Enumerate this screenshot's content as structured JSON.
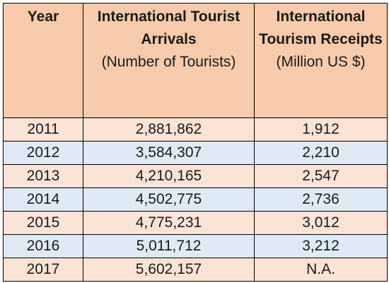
{
  "chart_data": {
    "type": "table",
    "columns": [
      {
        "title": "Year",
        "subtitle": ""
      },
      {
        "title": "International Tourist Arrivals",
        "subtitle": "(Number of Tourists)"
      },
      {
        "title": "International Tourism Receipts",
        "subtitle": "(Million US $)"
      }
    ],
    "rows": [
      [
        "2011",
        "2,881,862",
        "1,912"
      ],
      [
        "2012",
        "3,584,307",
        "2,210"
      ],
      [
        "2013",
        "4,210,165",
        "2,547"
      ],
      [
        "2014",
        "4,502,775",
        "2,736"
      ],
      [
        "2015",
        "4,775,231",
        "3,012"
      ],
      [
        "2016",
        "5,011,712",
        "3,212"
      ],
      [
        "2017",
        "5,602,157",
        "N.A."
      ]
    ]
  },
  "colors": {
    "header_bg": "#f8cbad",
    "row_odd_bg": "#fbe3d6",
    "row_even_bg": "#deebf7",
    "border": "#000000"
  }
}
